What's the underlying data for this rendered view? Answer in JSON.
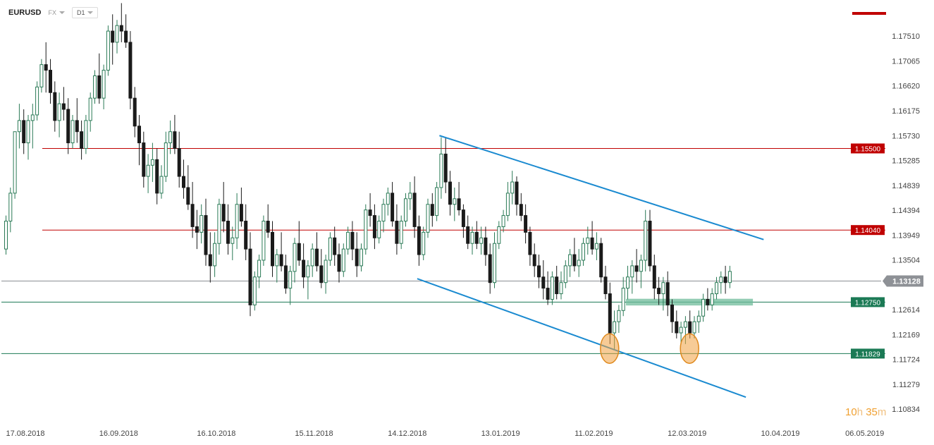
{
  "toolbar": {
    "symbol": "EURUSD",
    "market": "FX",
    "timeframe": "D1"
  },
  "timer": {
    "hours": "10",
    "hours_unit": "h",
    "minutes": "35",
    "minutes_unit": "m"
  },
  "colors": {
    "bull": "#2a7a56",
    "bear": "#1a1a1a",
    "resistance": "#c00000",
    "support": "#1b7a55",
    "channel": "#1a8ad0",
    "current": "#8c8f94",
    "highlight": "#f0a040"
  },
  "chart_data": {
    "type": "candlestick",
    "symbol": "EURUSD",
    "timeframe": "D1",
    "y_range": [
      1.1061,
      1.1803
    ],
    "y_ticks": [
      "1.17510",
      "1.17065",
      "1.16620",
      "1.16175",
      "1.15730",
      "1.15285",
      "1.14839",
      "1.14394",
      "1.13949",
      "1.13504",
      "1.13128",
      "1.12614",
      "1.12169",
      "1.11724",
      "1.11279",
      "1.10834"
    ],
    "x_ticks": [
      {
        "label": "17.08.2018",
        "bar": 0
      },
      {
        "label": "16.09.2018",
        "bar": 21
      },
      {
        "label": "16.10.2018",
        "bar": 43
      },
      {
        "label": "15.11.2018",
        "bar": 65
      },
      {
        "label": "14.12.2018",
        "bar": 86
      },
      {
        "label": "13.01.2019",
        "bar": 107
      },
      {
        "label": "11.02.2019",
        "bar": 128
      },
      {
        "label": "12.03.2019",
        "bar": 149
      },
      {
        "label": "10.04.2019",
        "bar": 170
      },
      {
        "label": "06.05.2019",
        "bar": 189
      }
    ],
    "levels": [
      {
        "label": "1.15500",
        "value": 1.155,
        "type": "resistance"
      },
      {
        "label": "1.14040",
        "value": 1.1404,
        "type": "resistance"
      },
      {
        "label": "1.12750",
        "value": 1.1275,
        "type": "support"
      },
      {
        "label": "1.11829",
        "value": 1.11829,
        "type": "support"
      }
    ],
    "current_price": {
      "label": "1.13128",
      "value": 1.13128
    },
    "channel_upper": [
      {
        "bar": 98,
        "price": 1.1573
      },
      {
        "bar": 171,
        "price": 1.1387
      }
    ],
    "channel_lower": [
      {
        "bar": 93,
        "price": 1.1317
      },
      {
        "bar": 167,
        "price": 1.1105
      }
    ],
    "support_zone": {
      "from_bar": 140,
      "to_bar": 167,
      "low": 1.1269,
      "high": 1.1281
    },
    "highlights": [
      {
        "bar": 136,
        "price": 1.1192
      },
      {
        "bar": 154,
        "price": 1.1192
      }
    ],
    "candles": [
      [
        1.137,
        1.143,
        1.136,
        1.142
      ],
      [
        1.142,
        1.148,
        1.14,
        1.147
      ],
      [
        1.147,
        1.158,
        1.146,
        1.158
      ],
      [
        1.158,
        1.163,
        1.155,
        1.16
      ],
      [
        1.16,
        1.162,
        1.154,
        1.156
      ],
      [
        1.156,
        1.161,
        1.153,
        1.16
      ],
      [
        1.16,
        1.163,
        1.155,
        1.161
      ],
      [
        1.161,
        1.167,
        1.16,
        1.166
      ],
      [
        1.166,
        1.171,
        1.165,
        1.17
      ],
      [
        1.17,
        1.174,
        1.165,
        1.169
      ],
      [
        1.169,
        1.171,
        1.163,
        1.165
      ],
      [
        1.165,
        1.167,
        1.158,
        1.16
      ],
      [
        1.16,
        1.165,
        1.157,
        1.163
      ],
      [
        1.163,
        1.166,
        1.16,
        1.162
      ],
      [
        1.162,
        1.164,
        1.154,
        1.156
      ],
      [
        1.156,
        1.161,
        1.155,
        1.16
      ],
      [
        1.16,
        1.164,
        1.156,
        1.158
      ],
      [
        1.158,
        1.16,
        1.153,
        1.155
      ],
      [
        1.155,
        1.161,
        1.154,
        1.16
      ],
      [
        1.16,
        1.165,
        1.158,
        1.164
      ],
      [
        1.164,
        1.169,
        1.163,
        1.168
      ],
      [
        1.168,
        1.172,
        1.163,
        1.164
      ],
      [
        1.164,
        1.17,
        1.162,
        1.169
      ],
      [
        1.169,
        1.177,
        1.168,
        1.176
      ],
      [
        1.176,
        1.179,
        1.17,
        1.174
      ],
      [
        1.174,
        1.178,
        1.172,
        1.177
      ],
      [
        1.177,
        1.181,
        1.174,
        1.176
      ],
      [
        1.176,
        1.179,
        1.173,
        1.174
      ],
      [
        1.174,
        1.176,
        1.162,
        1.164
      ],
      [
        1.164,
        1.166,
        1.157,
        1.159
      ],
      [
        1.159,
        1.161,
        1.152,
        1.156
      ],
      [
        1.156,
        1.158,
        1.148,
        1.15
      ],
      [
        1.15,
        1.154,
        1.147,
        1.152
      ],
      [
        1.152,
        1.156,
        1.149,
        1.153
      ],
      [
        1.153,
        1.155,
        1.145,
        1.147
      ],
      [
        1.147,
        1.152,
        1.146,
        1.15
      ],
      [
        1.15,
        1.158,
        1.149,
        1.156
      ],
      [
        1.156,
        1.16,
        1.154,
        1.158
      ],
      [
        1.158,
        1.161,
        1.154,
        1.155
      ],
      [
        1.155,
        1.158,
        1.148,
        1.15
      ],
      [
        1.15,
        1.153,
        1.146,
        1.148
      ],
      [
        1.148,
        1.152,
        1.144,
        1.145
      ],
      [
        1.145,
        1.149,
        1.139,
        1.141
      ],
      [
        1.141,
        1.144,
        1.137,
        1.14
      ],
      [
        1.14,
        1.145,
        1.138,
        1.143
      ],
      [
        1.143,
        1.146,
        1.134,
        1.136
      ],
      [
        1.136,
        1.14,
        1.131,
        1.134
      ],
      [
        1.134,
        1.14,
        1.132,
        1.138
      ],
      [
        1.138,
        1.146,
        1.136,
        1.145
      ],
      [
        1.145,
        1.149,
        1.14,
        1.142
      ],
      [
        1.142,
        1.145,
        1.136,
        1.138
      ],
      [
        1.138,
        1.141,
        1.135,
        1.139
      ],
      [
        1.139,
        1.147,
        1.137,
        1.145
      ],
      [
        1.145,
        1.148,
        1.141,
        1.142
      ],
      [
        1.142,
        1.145,
        1.135,
        1.137
      ],
      [
        1.137,
        1.14,
        1.125,
        1.127
      ],
      [
        1.127,
        1.133,
        1.126,
        1.132
      ],
      [
        1.132,
        1.136,
        1.13,
        1.135
      ],
      [
        1.135,
        1.143,
        1.134,
        1.142
      ],
      [
        1.142,
        1.145,
        1.139,
        1.14
      ],
      [
        1.14,
        1.142,
        1.132,
        1.134
      ],
      [
        1.134,
        1.137,
        1.131,
        1.136
      ],
      [
        1.136,
        1.14,
        1.133,
        1.134
      ],
      [
        1.134,
        1.136,
        1.129,
        1.13
      ],
      [
        1.13,
        1.134,
        1.127,
        1.133
      ],
      [
        1.133,
        1.139,
        1.131,
        1.138
      ],
      [
        1.138,
        1.142,
        1.134,
        1.135
      ],
      [
        1.135,
        1.138,
        1.13,
        1.132
      ],
      [
        1.132,
        1.135,
        1.128,
        1.134
      ],
      [
        1.134,
        1.138,
        1.132,
        1.137
      ],
      [
        1.137,
        1.14,
        1.133,
        1.134
      ],
      [
        1.134,
        1.137,
        1.13,
        1.131
      ],
      [
        1.131,
        1.136,
        1.129,
        1.135
      ],
      [
        1.135,
        1.14,
        1.134,
        1.139
      ],
      [
        1.139,
        1.141,
        1.134,
        1.136
      ],
      [
        1.136,
        1.138,
        1.131,
        1.133
      ],
      [
        1.133,
        1.138,
        1.132,
        1.137
      ],
      [
        1.137,
        1.141,
        1.136,
        1.14
      ],
      [
        1.14,
        1.142,
        1.135,
        1.137
      ],
      [
        1.137,
        1.14,
        1.132,
        1.134
      ],
      [
        1.134,
        1.138,
        1.133,
        1.137
      ],
      [
        1.137,
        1.145,
        1.136,
        1.144
      ],
      [
        1.144,
        1.147,
        1.141,
        1.143
      ],
      [
        1.143,
        1.145,
        1.137,
        1.139
      ],
      [
        1.139,
        1.143,
        1.138,
        1.142
      ],
      [
        1.142,
        1.146,
        1.14,
        1.145
      ],
      [
        1.145,
        1.148,
        1.143,
        1.147
      ],
      [
        1.147,
        1.149,
        1.141,
        1.142
      ],
      [
        1.142,
        1.145,
        1.136,
        1.138
      ],
      [
        1.138,
        1.143,
        1.137,
        1.142
      ],
      [
        1.142,
        1.147,
        1.141,
        1.146
      ],
      [
        1.146,
        1.149,
        1.144,
        1.147
      ],
      [
        1.147,
        1.15,
        1.139,
        1.141
      ],
      [
        1.141,
        1.143,
        1.134,
        1.136
      ],
      [
        1.136,
        1.141,
        1.135,
        1.14
      ],
      [
        1.14,
        1.146,
        1.139,
        1.145
      ],
      [
        1.145,
        1.147,
        1.141,
        1.143
      ],
      [
        1.143,
        1.149,
        1.142,
        1.148
      ],
      [
        1.148,
        1.157,
        1.146,
        1.154
      ],
      [
        1.154,
        1.157,
        1.147,
        1.149
      ],
      [
        1.149,
        1.151,
        1.143,
        1.145
      ],
      [
        1.145,
        1.148,
        1.142,
        1.146
      ],
      [
        1.146,
        1.149,
        1.143,
        1.144
      ],
      [
        1.144,
        1.145,
        1.139,
        1.141
      ],
      [
        1.141,
        1.143,
        1.137,
        1.138
      ],
      [
        1.138,
        1.141,
        1.136,
        1.14
      ],
      [
        1.14,
        1.142,
        1.137,
        1.138
      ],
      [
        1.138,
        1.141,
        1.136,
        1.139
      ],
      [
        1.139,
        1.141,
        1.134,
        1.136
      ],
      [
        1.136,
        1.138,
        1.129,
        1.131
      ],
      [
        1.131,
        1.14,
        1.13,
        1.138
      ],
      [
        1.138,
        1.142,
        1.137,
        1.141
      ],
      [
        1.141,
        1.144,
        1.14,
        1.143
      ],
      [
        1.143,
        1.149,
        1.142,
        1.147
      ],
      [
        1.147,
        1.151,
        1.145,
        1.149
      ],
      [
        1.149,
        1.15,
        1.143,
        1.145
      ],
      [
        1.145,
        1.147,
        1.142,
        1.143
      ],
      [
        1.143,
        1.145,
        1.138,
        1.14
      ],
      [
        1.14,
        1.141,
        1.134,
        1.136
      ],
      [
        1.136,
        1.138,
        1.132,
        1.134
      ],
      [
        1.134,
        1.136,
        1.13,
        1.132
      ],
      [
        1.132,
        1.135,
        1.128,
        1.13
      ],
      [
        1.13,
        1.133,
        1.127,
        1.128
      ],
      [
        1.128,
        1.133,
        1.127,
        1.132
      ],
      [
        1.132,
        1.134,
        1.128,
        1.129
      ],
      [
        1.129,
        1.133,
        1.128,
        1.131
      ],
      [
        1.131,
        1.135,
        1.13,
        1.134
      ],
      [
        1.134,
        1.137,
        1.132,
        1.136
      ],
      [
        1.136,
        1.139,
        1.133,
        1.134
      ],
      [
        1.134,
        1.137,
        1.132,
        1.135
      ],
      [
        1.135,
        1.139,
        1.134,
        1.138
      ],
      [
        1.138,
        1.141,
        1.136,
        1.139
      ],
      [
        1.139,
        1.142,
        1.136,
        1.137
      ],
      [
        1.137,
        1.14,
        1.135,
        1.138
      ],
      [
        1.138,
        1.139,
        1.131,
        1.132
      ],
      [
        1.132,
        1.134,
        1.128,
        1.129
      ],
      [
        1.129,
        1.131,
        1.12,
        1.122
      ],
      [
        1.122,
        1.126,
        1.119,
        1.124
      ],
      [
        1.124,
        1.127,
        1.122,
        1.126
      ],
      [
        1.126,
        1.132,
        1.125,
        1.13
      ],
      [
        1.13,
        1.134,
        1.128,
        1.132
      ],
      [
        1.132,
        1.135,
        1.129,
        1.134
      ],
      [
        1.134,
        1.137,
        1.131,
        1.133
      ],
      [
        1.133,
        1.136,
        1.13,
        1.135
      ],
      [
        1.135,
        1.144,
        1.133,
        1.142
      ],
      [
        1.142,
        1.144,
        1.133,
        1.134
      ],
      [
        1.134,
        1.136,
        1.128,
        1.13
      ],
      [
        1.13,
        1.132,
        1.127,
        1.129
      ],
      [
        1.129,
        1.132,
        1.126,
        1.131
      ],
      [
        1.131,
        1.133,
        1.125,
        1.127
      ],
      [
        1.127,
        1.128,
        1.122,
        1.124
      ],
      [
        1.124,
        1.126,
        1.121,
        1.122
      ],
      [
        1.122,
        1.124,
        1.12,
        1.123
      ],
      [
        1.123,
        1.125,
        1.12,
        1.124
      ],
      [
        1.124,
        1.126,
        1.121,
        1.122
      ],
      [
        1.122,
        1.125,
        1.121,
        1.124
      ],
      [
        1.124,
        1.126,
        1.122,
        1.125
      ],
      [
        1.125,
        1.129,
        1.124,
        1.128
      ],
      [
        1.128,
        1.13,
        1.126,
        1.127
      ],
      [
        1.127,
        1.13,
        1.126,
        1.129
      ],
      [
        1.129,
        1.132,
        1.128,
        1.131
      ],
      [
        1.131,
        1.133,
        1.129,
        1.132
      ],
      [
        1.132,
        1.134,
        1.129,
        1.131
      ],
      [
        1.131,
        1.134,
        1.13,
        1.133
      ]
    ]
  }
}
